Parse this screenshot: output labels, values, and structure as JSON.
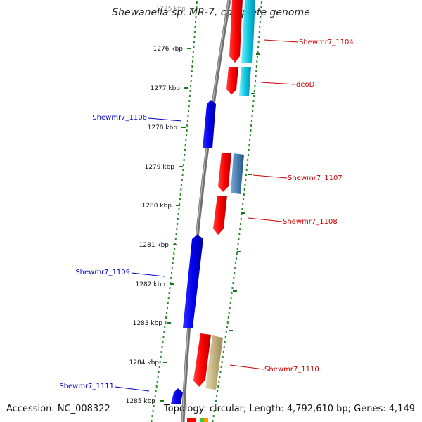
{
  "title": "Shewanella sp. MR-7, complete genome",
  "footer": {
    "accession": "Accession: NC_008322",
    "summary": "Topology: circular; Length: 4,792,610 bp; Genes: 4,149"
  },
  "ticks": [
    {
      "label": "1275 kbp"
    },
    {
      "label": "1276 kbp"
    },
    {
      "label": "1277 kbp"
    },
    {
      "label": "1278 kbp"
    },
    {
      "label": "1279 kbp"
    },
    {
      "label": "1280 kbp"
    },
    {
      "label": "1281 kbp"
    },
    {
      "label": "1282 kbp"
    },
    {
      "label": "1283 kbp"
    },
    {
      "label": "1284 kbp"
    },
    {
      "label": "1285 kbp"
    }
  ],
  "gene_labels": [
    {
      "text": "Shewmr7_1104",
      "color": "#cc0000"
    },
    {
      "text": "deoD",
      "color": "#cc0000"
    },
    {
      "text": "Shewmr7_1106",
      "color": "#0000cc"
    },
    {
      "text": "Shewmr7_1107",
      "color": "#cc0000"
    },
    {
      "text": "Shewmr7_1108",
      "color": "#cc0000"
    },
    {
      "text": "Shewmr7_1109",
      "color": "#0000cc"
    },
    {
      "text": "Shewmr7_1110",
      "color": "#cc0000"
    },
    {
      "text": "Shewmr7_1111",
      "color": "#0000cc"
    }
  ],
  "colors": {
    "forward_gene": "#ff0000",
    "reverse_gene": "#0000ee",
    "cds_cyan": "#00c8e0",
    "cds_steel": "#4a7fb0",
    "cds_khaki": "#c2b280",
    "backbone": "#808080",
    "dots": "#2a8a2a"
  }
}
